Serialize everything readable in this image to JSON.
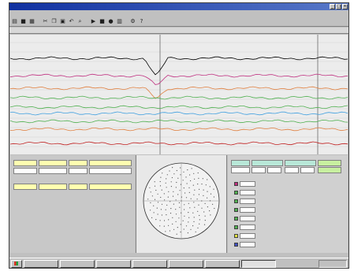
{
  "window": {
    "title": "",
    "menu": [],
    "status_cells": [],
    "colors": {
      "titlebar": "#1030a0",
      "background": "#c0c0c0",
      "trace_bg": "#ececec"
    }
  },
  "toolbar": {
    "icons": [
      "open-icon",
      "save-icon",
      "print-icon",
      "cut-icon",
      "copy-icon",
      "paste-icon",
      "undo-icon",
      "zoom-icon",
      "play-icon",
      "stop-icon",
      "record-icon",
      "chart-icon",
      "settings-icon",
      "help-icon"
    ]
  },
  "traces": [
    {
      "color": "#000000",
      "role": "dark"
    },
    {
      "color": "#c03080",
      "role": "magenta"
    },
    {
      "color": "#e08040",
      "role": "orange"
    },
    {
      "color": "#50b050",
      "role": "green"
    },
    {
      "color": "#40a0e0",
      "role": "blue"
    },
    {
      "color": "#c02020",
      "role": "red"
    }
  ],
  "left_panel": {
    "cells": []
  },
  "right_panel": {
    "cells": [],
    "legend": []
  },
  "taskbar": {
    "start_label": "",
    "tasks": [],
    "clock": ""
  }
}
